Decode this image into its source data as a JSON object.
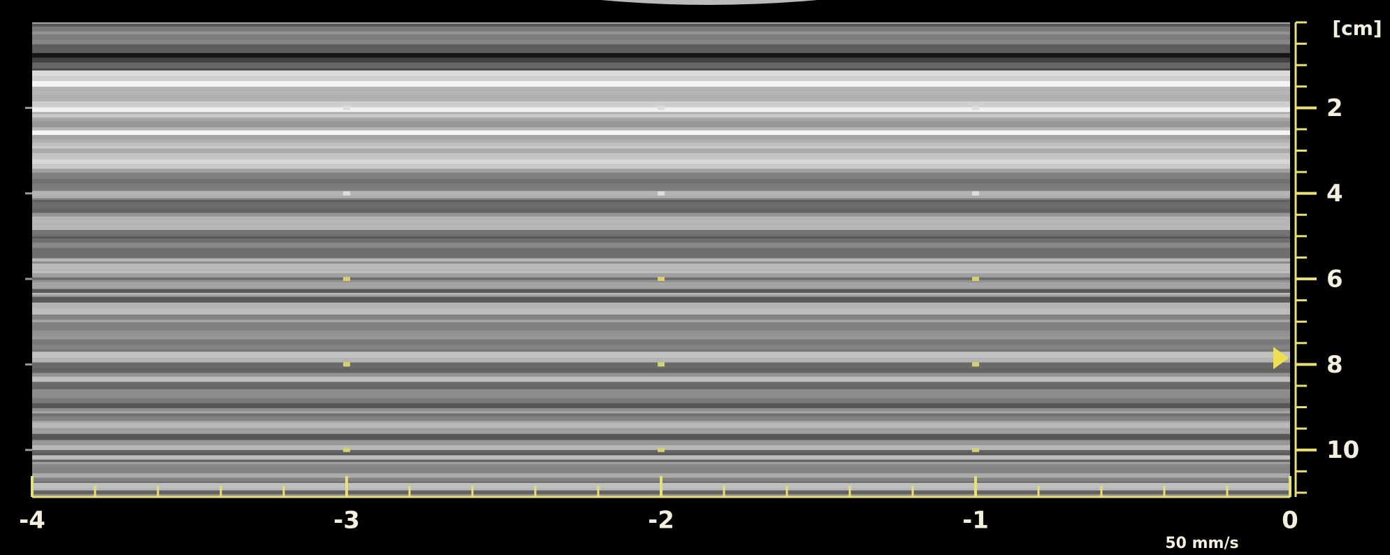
{
  "display": {
    "depth_unit": "[cm]",
    "depth_lim": [
      0,
      11.1
    ],
    "depth_ticks": [
      2,
      4,
      6,
      8,
      10
    ],
    "depth_minor_step": 0.5,
    "time_lim": [
      -4,
      0
    ],
    "time_ticks": [
      -4,
      -3,
      -2,
      -1,
      0
    ],
    "time_minor_step": 0.2,
    "sweep_speed": "50 mm/s",
    "marker_depth": 7.85
  }
}
